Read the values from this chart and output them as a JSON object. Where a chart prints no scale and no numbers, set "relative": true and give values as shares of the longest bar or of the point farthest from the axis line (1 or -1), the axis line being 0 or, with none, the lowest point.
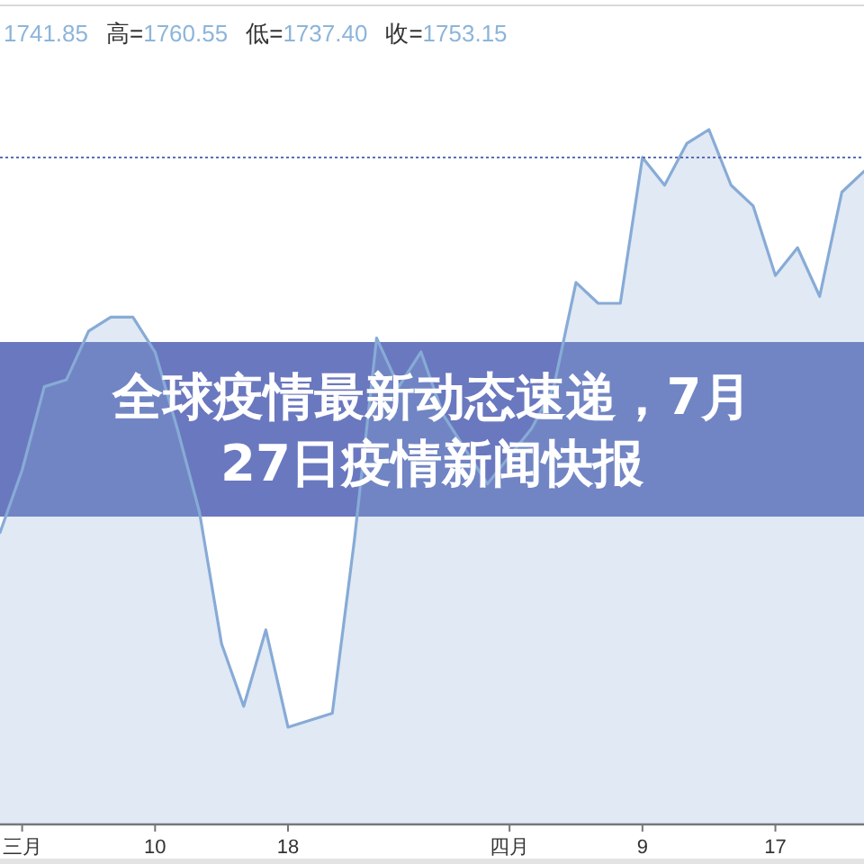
{
  "chart_data": {
    "type": "area",
    "title": "全球疫情最新动态速递，7月27日疫情新闻快报",
    "annotations": [
      "1741.85",
      "高=1760.55",
      "低=1737.40",
      "收=1753.15"
    ],
    "categories": [
      null,
      "三月",
      null,
      null,
      null,
      null,
      null,
      "10",
      null,
      null,
      null,
      null,
      null,
      "18",
      null,
      null,
      null,
      null,
      null,
      null,
      null,
      null,
      null,
      "四月",
      null,
      null,
      null,
      null,
      null,
      "9",
      null,
      null,
      null,
      null,
      null,
      "17",
      null,
      null,
      null,
      null
    ],
    "relative": true,
    "series": [
      {
        "color": "#87abd6",
        "values": [
          0.42,
          0.51,
          0.63,
          0.64,
          0.71,
          0.73,
          0.73,
          0.68,
          0.57,
          0.45,
          0.26,
          0.17,
          0.28,
          0.14,
          0.15,
          0.16,
          0.41,
          0.7,
          0.63,
          0.68,
          0.59,
          0.54,
          0.49,
          0.53,
          0.57,
          0.63,
          0.78,
          0.75,
          0.75,
          0.96,
          0.92,
          0.98,
          1,
          0.92,
          0.89,
          0.79,
          0.83,
          0.76,
          0.91,
          0.94
        ]
      }
    ],
    "ref_lines": [
      {
        "axis": "y",
        "value": 0.96,
        "color": "#5b6db5",
        "line_style": "dotted"
      }
    ]
  }
}
